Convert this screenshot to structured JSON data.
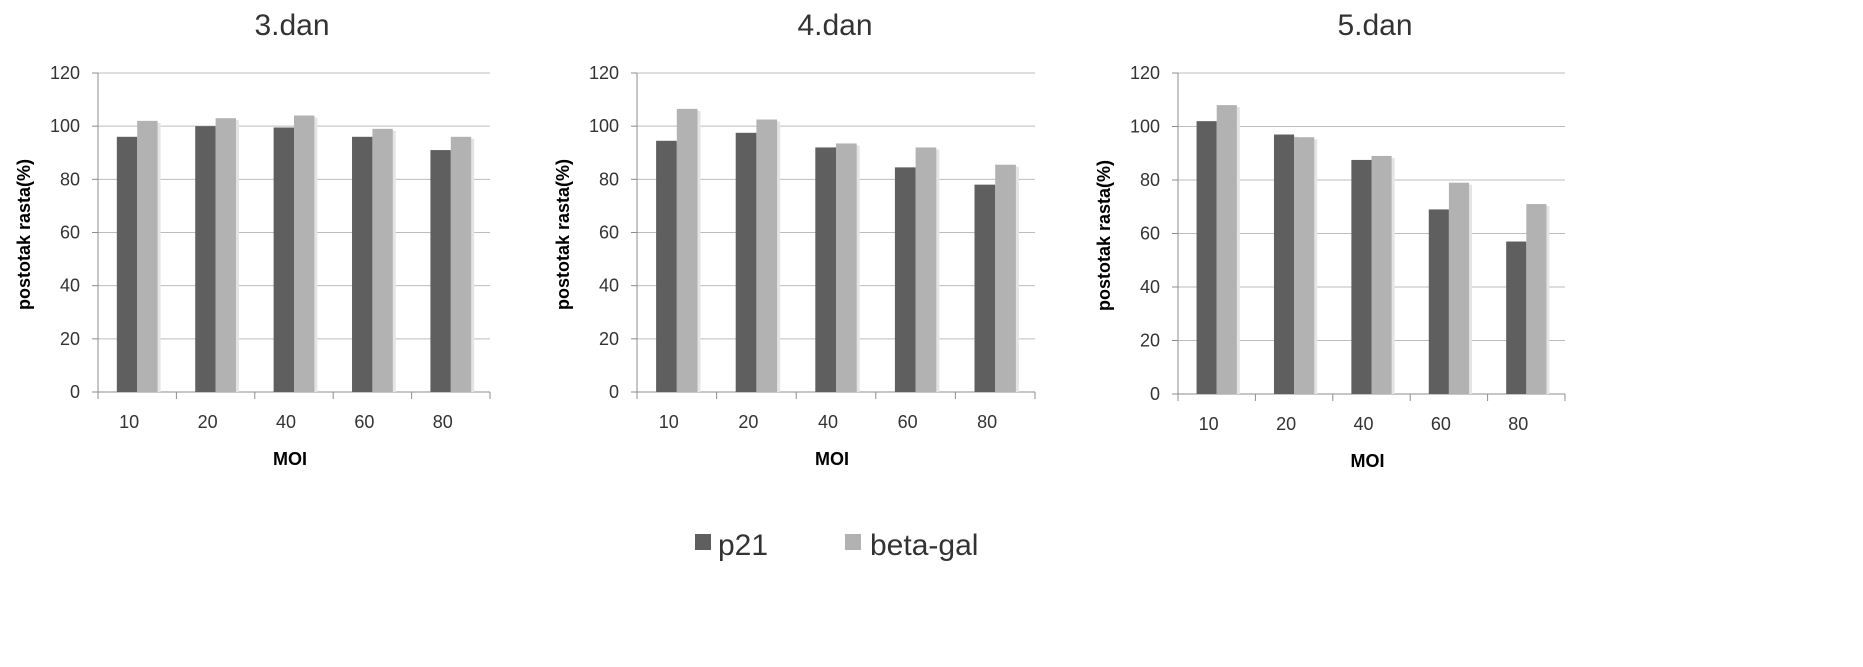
{
  "chart_data": [
    {
      "type": "bar",
      "title": "3.dan",
      "xlabel": "MOI",
      "ylabel": "postotak rasta(%)",
      "categories": [
        "10",
        "20",
        "40",
        "60",
        "80"
      ],
      "ylim": [
        0,
        120
      ],
      "yticks": [
        0,
        20,
        40,
        60,
        80,
        100,
        120
      ],
      "grid": true,
      "series": [
        {
          "name": "p21",
          "values": [
            96,
            100,
            99.5,
            96,
            91
          ]
        },
        {
          "name": "beta-gal",
          "values": [
            102,
            103,
            104,
            99,
            96
          ]
        }
      ]
    },
    {
      "type": "bar",
      "title": "4.dan",
      "xlabel": "MOI",
      "ylabel": "postotak rasta(%)",
      "categories": [
        "10",
        "20",
        "40",
        "60",
        "80"
      ],
      "ylim": [
        0,
        120
      ],
      "yticks": [
        0,
        20,
        40,
        60,
        80,
        100,
        120
      ],
      "grid": true,
      "series": [
        {
          "name": "p21",
          "values": [
            94.5,
            97.5,
            92,
            84.5,
            78
          ]
        },
        {
          "name": "beta-gal",
          "values": [
            106.5,
            102.5,
            93.5,
            92,
            85.5
          ]
        }
      ]
    },
    {
      "type": "bar",
      "title": "5.dan",
      "xlabel": "MOI",
      "ylabel": "postotak rasta(%)",
      "categories": [
        "10",
        "20",
        "40",
        "60",
        "80"
      ],
      "ylim": [
        0,
        120
      ],
      "yticks": [
        0,
        20,
        40,
        60,
        80,
        100,
        120
      ],
      "grid": true,
      "series": [
        {
          "name": "p21",
          "values": [
            102,
            97,
            87.5,
            69,
            57
          ]
        },
        {
          "name": "beta-gal",
          "values": [
            108,
            96,
            89,
            79,
            71
          ]
        }
      ]
    }
  ],
  "legend": {
    "placement": "bottom-center",
    "items": [
      {
        "label": "p21",
        "color": "#5f5f5f"
      },
      {
        "label": "beta-gal",
        "color": "#b2b2b2"
      }
    ]
  },
  "colors": {
    "p21": "#5f5f5f",
    "beta_gal": "#b2b2b2"
  }
}
